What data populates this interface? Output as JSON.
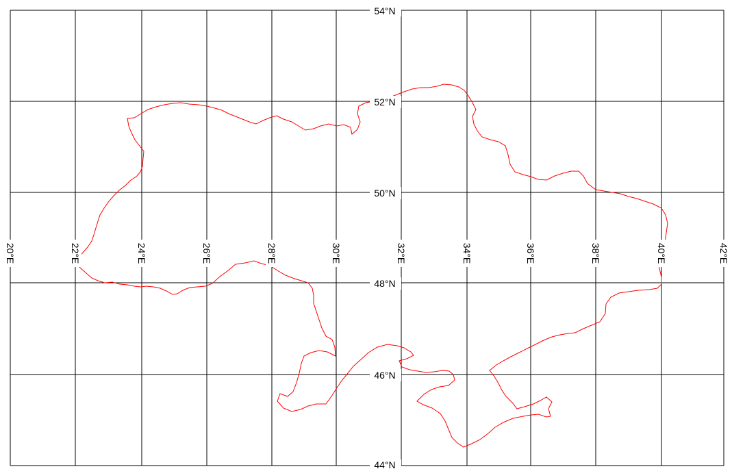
{
  "colors": {
    "background": "#ffffff",
    "graticule": "#000000",
    "border": "#ff0000"
  },
  "labels": {
    "lat_54": "54°N",
    "lat_52": "52°N",
    "lat_50": "50°N",
    "lat_48": "48°N",
    "lat_46": "46°N",
    "lat_44": "44°N",
    "lon_20": "20°E",
    "lon_22": "22°E",
    "lon_24": "24°E",
    "lon_26": "26°E",
    "lon_28": "28°E",
    "lon_30": "30°E",
    "lon_32": "32°E",
    "lon_34": "34°E",
    "lon_36": "36°E",
    "lon_38": "38°E",
    "lon_40": "40°E",
    "lon_42": "42°E"
  }
}
